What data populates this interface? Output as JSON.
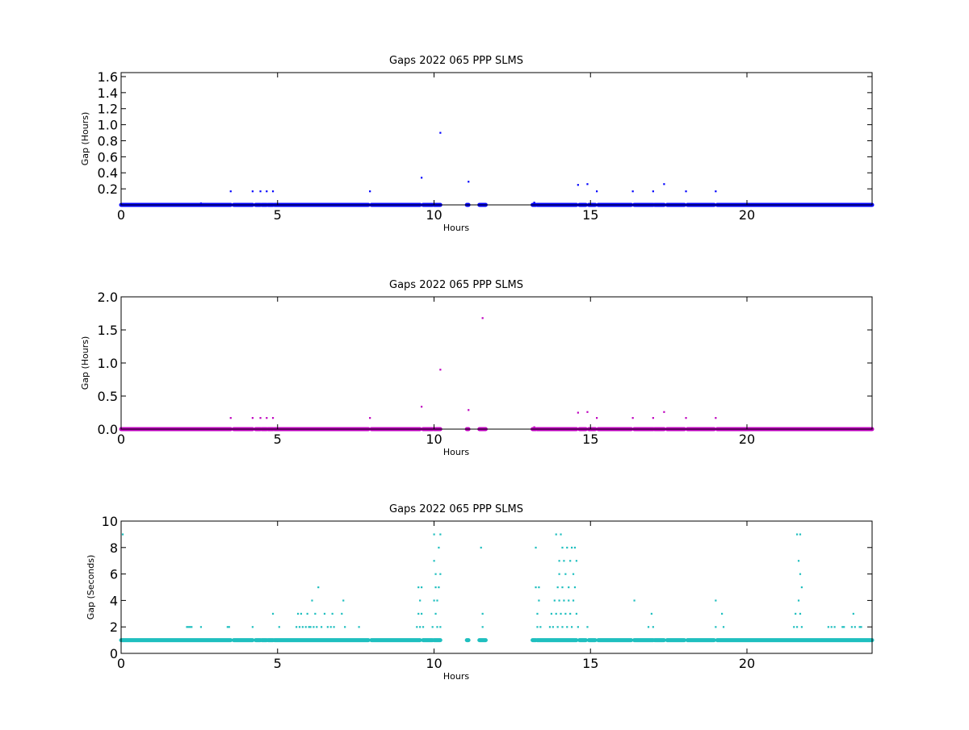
{
  "chart_data": [
    {
      "type": "scatter",
      "title": "Gaps 2022 065 PPP  SLMS",
      "xlabel": "Hours",
      "ylabel": "Gap (Hours)",
      "xlim": [
        0,
        24
      ],
      "ylim": [
        0,
        1.65
      ],
      "xticks": [
        "0",
        "5",
        "10",
        "15",
        "20"
      ],
      "yticks": [
        "0.2",
        "0.4",
        "0.6",
        "0.8",
        "1.0",
        "1.2",
        "1.4",
        "1.6"
      ],
      "grid": false,
      "color": "#0000ff",
      "series": [
        {
          "baseline": 0.0,
          "baseline_segments": [
            [
              0,
              3.5
            ],
            [
              3.6,
              4.2
            ],
            [
              4.3,
              4.45
            ],
            [
              4.5,
              4.65
            ],
            [
              4.7,
              4.85
            ],
            [
              4.9,
              7.9
            ],
            [
              8.0,
              9.55
            ],
            [
              9.65,
              9.95
            ],
            [
              10.0,
              10.2
            ],
            [
              11.05,
              11.1
            ],
            [
              11.45,
              11.65
            ],
            [
              13.15,
              13.25
            ],
            [
              13.3,
              14.55
            ],
            [
              14.65,
              14.85
            ],
            [
              14.95,
              15.15
            ],
            [
              15.25,
              16.3
            ],
            [
              16.4,
              17.0
            ],
            [
              17.05,
              17.35
            ],
            [
              17.45,
              18.0
            ],
            [
              18.1,
              18.95
            ],
            [
              19.05,
              24
            ]
          ],
          "points": [
            {
              "x": 2.55,
              "y": 0.02
            },
            {
              "x": 3.5,
              "y": 0.17
            },
            {
              "x": 4.2,
              "y": 0.17
            },
            {
              "x": 4.45,
              "y": 0.17
            },
            {
              "x": 4.65,
              "y": 0.17
            },
            {
              "x": 4.85,
              "y": 0.17
            },
            {
              "x": 7.95,
              "y": 0.17
            },
            {
              "x": 9.6,
              "y": 0.34
            },
            {
              "x": 10.2,
              "y": 0.9
            },
            {
              "x": 11.1,
              "y": 0.29
            },
            {
              "x": 13.2,
              "y": 0.03
            },
            {
              "x": 14.6,
              "y": 0.25
            },
            {
              "x": 14.9,
              "y": 0.26
            },
            {
              "x": 15.2,
              "y": 0.17
            },
            {
              "x": 16.35,
              "y": 0.17
            },
            {
              "x": 17.0,
              "y": 0.17
            },
            {
              "x": 17.35,
              "y": 0.26
            },
            {
              "x": 18.05,
              "y": 0.17
            },
            {
              "x": 19.0,
              "y": 0.17
            }
          ]
        }
      ]
    },
    {
      "type": "scatter",
      "title": "Gaps 2022 065 PPP  SLMS",
      "xlabel": "Hours",
      "ylabel": "Gap (Hours)",
      "xlim": [
        0,
        24
      ],
      "ylim": [
        0,
        2.0
      ],
      "xticks": [
        "0",
        "5",
        "10",
        "15",
        "20"
      ],
      "yticks": [
        "0.0",
        "0.5",
        "1.0",
        "1.5",
        "2.0"
      ],
      "grid": false,
      "color": "#bf00bf",
      "series": [
        {
          "baseline": 0.0,
          "baseline_segments": [
            [
              0,
              3.5
            ],
            [
              3.6,
              4.2
            ],
            [
              4.3,
              4.45
            ],
            [
              4.5,
              4.65
            ],
            [
              4.7,
              4.85
            ],
            [
              4.9,
              7.9
            ],
            [
              8.0,
              9.55
            ],
            [
              9.65,
              9.95
            ],
            [
              10.0,
              10.2
            ],
            [
              11.05,
              11.1
            ],
            [
              11.45,
              11.65
            ],
            [
              13.15,
              13.25
            ],
            [
              13.3,
              14.55
            ],
            [
              14.65,
              14.85
            ],
            [
              14.95,
              15.15
            ],
            [
              15.25,
              16.3
            ],
            [
              16.4,
              17.0
            ],
            [
              17.05,
              17.35
            ],
            [
              17.45,
              18.0
            ],
            [
              18.1,
              18.95
            ],
            [
              19.05,
              24
            ]
          ],
          "points": [
            {
              "x": 3.5,
              "y": 0.17
            },
            {
              "x": 4.2,
              "y": 0.17
            },
            {
              "x": 4.45,
              "y": 0.17
            },
            {
              "x": 4.65,
              "y": 0.17
            },
            {
              "x": 4.85,
              "y": 0.17
            },
            {
              "x": 7.95,
              "y": 0.17
            },
            {
              "x": 9.6,
              "y": 0.34
            },
            {
              "x": 10.2,
              "y": 0.9
            },
            {
              "x": 11.1,
              "y": 0.29
            },
            {
              "x": 11.55,
              "y": 1.68
            },
            {
              "x": 13.2,
              "y": 0.03
            },
            {
              "x": 14.6,
              "y": 0.25
            },
            {
              "x": 14.9,
              "y": 0.26
            },
            {
              "x": 15.2,
              "y": 0.17
            },
            {
              "x": 16.35,
              "y": 0.17
            },
            {
              "x": 17.0,
              "y": 0.17
            },
            {
              "x": 17.35,
              "y": 0.26
            },
            {
              "x": 18.05,
              "y": 0.17
            },
            {
              "x": 19.0,
              "y": 0.17
            }
          ]
        }
      ]
    },
    {
      "type": "scatter",
      "title": "Gaps 2022 065 PPP  SLMS",
      "xlabel": "Hours",
      "ylabel": "Gap (Seconds)",
      "xlim": [
        0,
        24
      ],
      "ylim": [
        0,
        10
      ],
      "xticks": [
        "0",
        "5",
        "10",
        "15",
        "20"
      ],
      "yticks": [
        "0",
        "2",
        "4",
        "6",
        "8",
        "10"
      ],
      "grid": false,
      "color": "#1fbfbf",
      "series": [
        {
          "baseline": 1.0,
          "baseline_segments": [
            [
              0,
              3.5
            ],
            [
              3.6,
              4.2
            ],
            [
              4.3,
              4.45
            ],
            [
              4.5,
              4.65
            ],
            [
              4.7,
              4.85
            ],
            [
              4.9,
              7.9
            ],
            [
              8.0,
              9.55
            ],
            [
              9.65,
              9.95
            ],
            [
              10.0,
              10.2
            ],
            [
              11.05,
              11.1
            ],
            [
              11.45,
              11.65
            ],
            [
              13.15,
              13.25
            ],
            [
              13.3,
              14.55
            ],
            [
              14.65,
              14.85
            ],
            [
              14.95,
              15.15
            ],
            [
              15.25,
              16.3
            ],
            [
              16.4,
              17.0
            ],
            [
              17.05,
              17.35
            ],
            [
              17.45,
              18.0
            ],
            [
              18.1,
              18.95
            ],
            [
              19.05,
              24
            ]
          ],
          "points": [
            {
              "x": 0.05,
              "y": 9
            },
            {
              "x": 2.1,
              "y": 2
            },
            {
              "x": 2.15,
              "y": 2
            },
            {
              "x": 2.2,
              "y": 2
            },
            {
              "x": 2.25,
              "y": 2
            },
            {
              "x": 2.55,
              "y": 2
            },
            {
              "x": 3.4,
              "y": 2
            },
            {
              "x": 3.45,
              "y": 2
            },
            {
              "x": 4.2,
              "y": 2
            },
            {
              "x": 4.85,
              "y": 3
            },
            {
              "x": 5.05,
              "y": 2
            },
            {
              "x": 5.6,
              "y": 2
            },
            {
              "x": 5.65,
              "y": 3
            },
            {
              "x": 5.7,
              "y": 2
            },
            {
              "x": 5.75,
              "y": 3
            },
            {
              "x": 5.8,
              "y": 2
            },
            {
              "x": 5.9,
              "y": 2
            },
            {
              "x": 5.95,
              "y": 3
            },
            {
              "x": 6.0,
              "y": 2
            },
            {
              "x": 6.05,
              "y": 2
            },
            {
              "x": 6.1,
              "y": 4
            },
            {
              "x": 6.15,
              "y": 2
            },
            {
              "x": 6.2,
              "y": 3
            },
            {
              "x": 6.25,
              "y": 2
            },
            {
              "x": 6.3,
              "y": 5
            },
            {
              "x": 6.4,
              "y": 2
            },
            {
              "x": 6.5,
              "y": 3
            },
            {
              "x": 6.6,
              "y": 2
            },
            {
              "x": 6.7,
              "y": 2
            },
            {
              "x": 6.75,
              "y": 3
            },
            {
              "x": 6.8,
              "y": 2
            },
            {
              "x": 7.05,
              "y": 3
            },
            {
              "x": 7.1,
              "y": 4
            },
            {
              "x": 7.15,
              "y": 2
            },
            {
              "x": 7.6,
              "y": 2
            },
            {
              "x": 9.45,
              "y": 2
            },
            {
              "x": 9.5,
              "y": 3
            },
            {
              "x": 9.5,
              "y": 5
            },
            {
              "x": 9.55,
              "y": 4
            },
            {
              "x": 9.55,
              "y": 2
            },
            {
              "x": 9.6,
              "y": 3
            },
            {
              "x": 9.6,
              "y": 5
            },
            {
              "x": 9.65,
              "y": 2
            },
            {
              "x": 9.95,
              "y": 2
            },
            {
              "x": 10.0,
              "y": 9
            },
            {
              "x": 10.0,
              "y": 7
            },
            {
              "x": 10.0,
              "y": 4
            },
            {
              "x": 10.05,
              "y": 6
            },
            {
              "x": 10.05,
              "y": 5
            },
            {
              "x": 10.05,
              "y": 3
            },
            {
              "x": 10.1,
              "y": 4
            },
            {
              "x": 10.1,
              "y": 2
            },
            {
              "x": 10.15,
              "y": 5
            },
            {
              "x": 10.15,
              "y": 8
            },
            {
              "x": 10.2,
              "y": 9
            },
            {
              "x": 10.2,
              "y": 6
            },
            {
              "x": 10.2,
              "y": 2
            },
            {
              "x": 11.5,
              "y": 8
            },
            {
              "x": 11.55,
              "y": 3
            },
            {
              "x": 11.55,
              "y": 2
            },
            {
              "x": 13.25,
              "y": 8
            },
            {
              "x": 13.25,
              "y": 5
            },
            {
              "x": 13.3,
              "y": 3
            },
            {
              "x": 13.3,
              "y": 2
            },
            {
              "x": 13.35,
              "y": 5
            },
            {
              "x": 13.35,
              "y": 4
            },
            {
              "x": 13.4,
              "y": 2
            },
            {
              "x": 13.7,
              "y": 2
            },
            {
              "x": 13.75,
              "y": 3
            },
            {
              "x": 13.8,
              "y": 2
            },
            {
              "x": 13.85,
              "y": 4
            },
            {
              "x": 13.9,
              "y": 9
            },
            {
              "x": 13.9,
              "y": 3
            },
            {
              "x": 13.95,
              "y": 5
            },
            {
              "x": 13.95,
              "y": 2
            },
            {
              "x": 14.0,
              "y": 6
            },
            {
              "x": 14.0,
              "y": 4
            },
            {
              "x": 14.0,
              "y": 7
            },
            {
              "x": 14.05,
              "y": 9
            },
            {
              "x": 14.05,
              "y": 3
            },
            {
              "x": 14.1,
              "y": 8
            },
            {
              "x": 14.1,
              "y": 5
            },
            {
              "x": 14.1,
              "y": 2
            },
            {
              "x": 14.15,
              "y": 7
            },
            {
              "x": 14.15,
              "y": 4
            },
            {
              "x": 14.2,
              "y": 6
            },
            {
              "x": 14.2,
              "y": 3
            },
            {
              "x": 14.25,
              "y": 8
            },
            {
              "x": 14.25,
              "y": 2
            },
            {
              "x": 14.3,
              "y": 5
            },
            {
              "x": 14.3,
              "y": 4
            },
            {
              "x": 14.35,
              "y": 7
            },
            {
              "x": 14.35,
              "y": 3
            },
            {
              "x": 14.4,
              "y": 8
            },
            {
              "x": 14.4,
              "y": 2
            },
            {
              "x": 14.45,
              "y": 6
            },
            {
              "x": 14.45,
              "y": 4
            },
            {
              "x": 14.5,
              "y": 5
            },
            {
              "x": 14.5,
              "y": 8
            },
            {
              "x": 14.55,
              "y": 7
            },
            {
              "x": 14.55,
              "y": 3
            },
            {
              "x": 14.6,
              "y": 2
            },
            {
              "x": 14.9,
              "y": 2
            },
            {
              "x": 16.4,
              "y": 4
            },
            {
              "x": 16.85,
              "y": 2
            },
            {
              "x": 16.95,
              "y": 3
            },
            {
              "x": 17.0,
              "y": 2
            },
            {
              "x": 19.0,
              "y": 4
            },
            {
              "x": 19.0,
              "y": 2
            },
            {
              "x": 19.2,
              "y": 3
            },
            {
              "x": 19.25,
              "y": 2
            },
            {
              "x": 21.5,
              "y": 2
            },
            {
              "x": 21.55,
              "y": 3
            },
            {
              "x": 21.6,
              "y": 9
            },
            {
              "x": 21.6,
              "y": 2
            },
            {
              "x": 21.65,
              "y": 7
            },
            {
              "x": 21.65,
              "y": 4
            },
            {
              "x": 21.7,
              "y": 6
            },
            {
              "x": 21.7,
              "y": 9
            },
            {
              "x": 21.7,
              "y": 3
            },
            {
              "x": 21.75,
              "y": 5
            },
            {
              "x": 21.75,
              "y": 2
            },
            {
              "x": 22.6,
              "y": 2
            },
            {
              "x": 22.7,
              "y": 2
            },
            {
              "x": 22.8,
              "y": 2
            },
            {
              "x": 23.05,
              "y": 2
            },
            {
              "x": 23.1,
              "y": 2
            },
            {
              "x": 23.35,
              "y": 2
            },
            {
              "x": 23.4,
              "y": 3
            },
            {
              "x": 23.45,
              "y": 2
            },
            {
              "x": 23.6,
              "y": 2
            },
            {
              "x": 23.65,
              "y": 2
            }
          ]
        }
      ]
    }
  ]
}
